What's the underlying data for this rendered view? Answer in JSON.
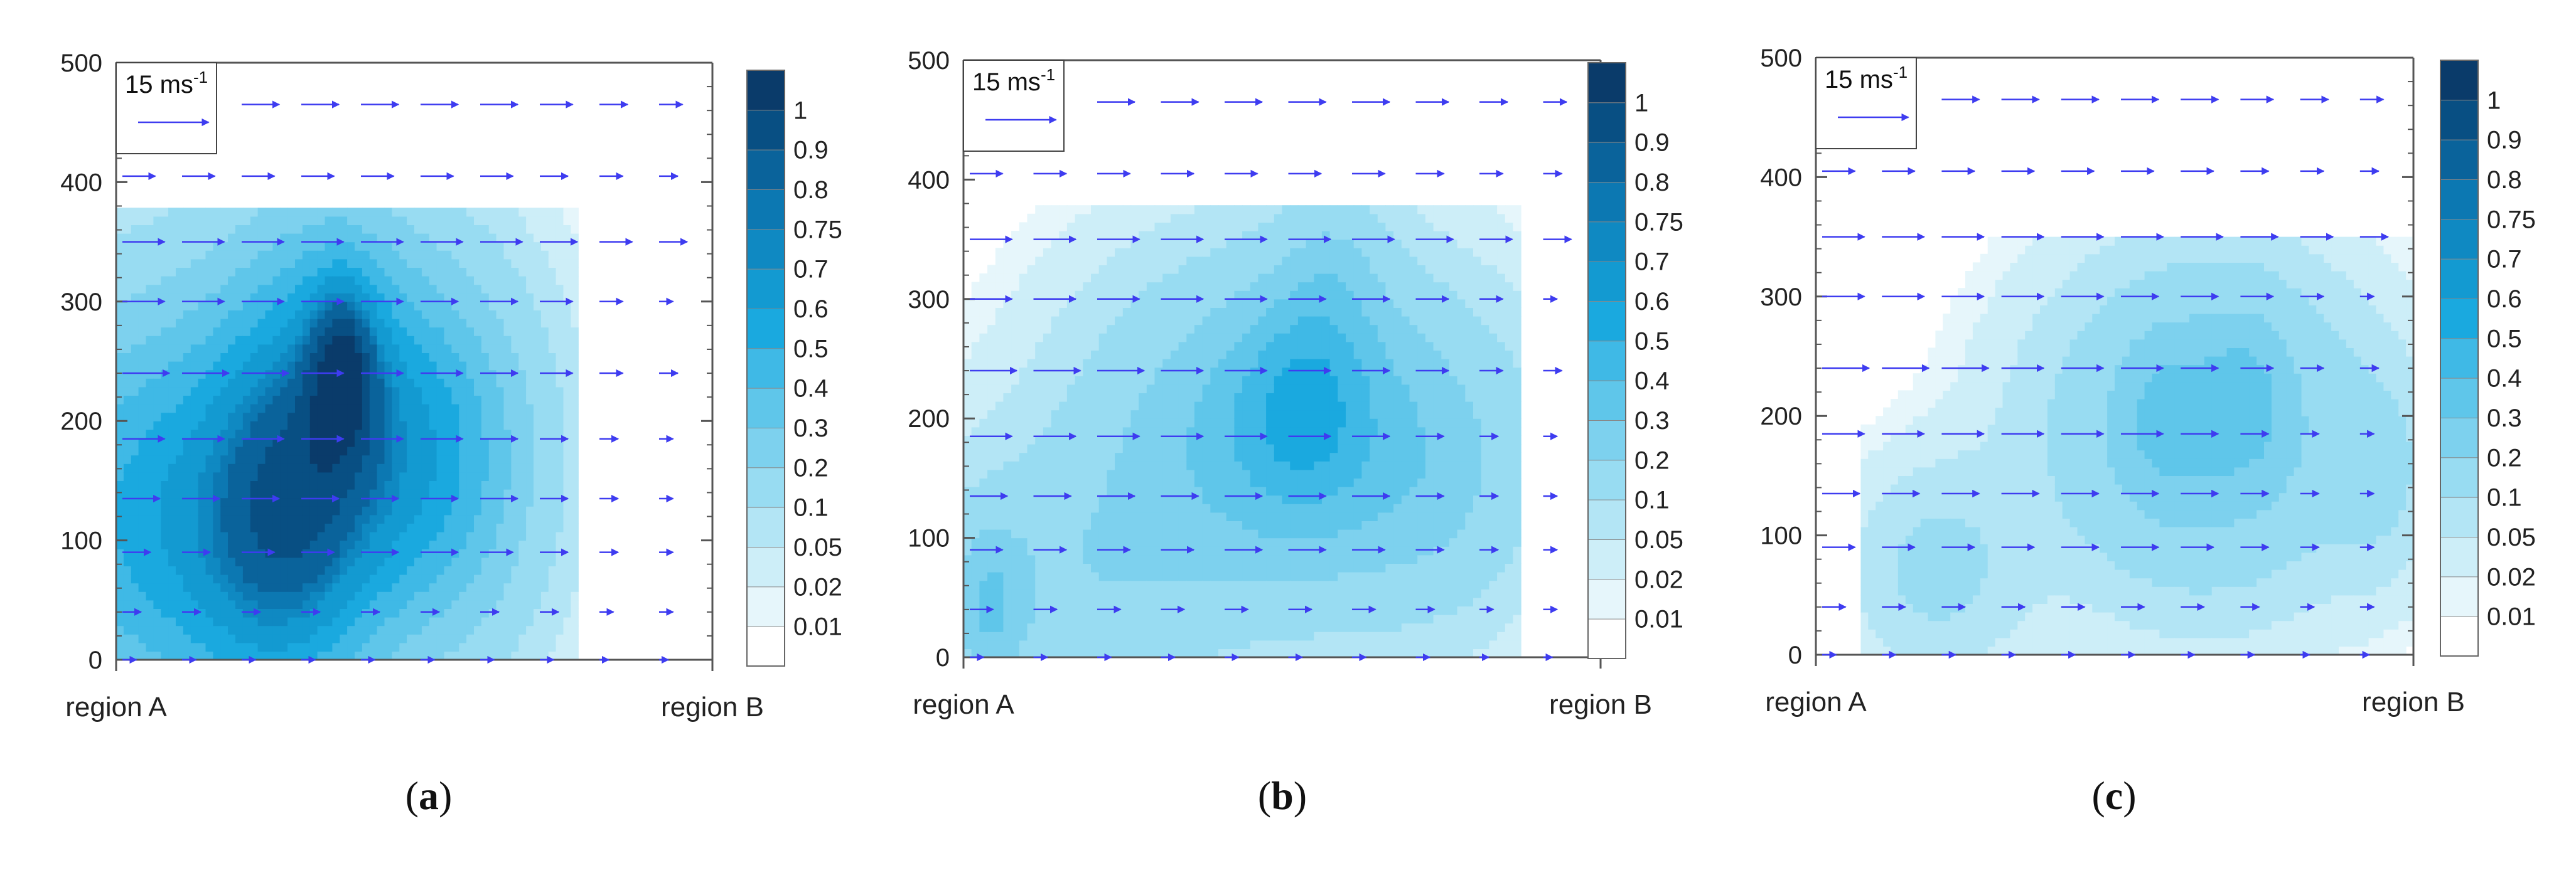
{
  "figure": {
    "panel_labels": [
      "a",
      "b",
      "c"
    ]
  },
  "palette": {
    "levels": [
      0.01,
      0.02,
      0.05,
      0.1,
      0.2,
      0.3,
      0.4,
      0.5,
      0.6,
      0.7,
      0.75,
      0.8,
      0.9,
      1
    ],
    "colors": [
      "#ffffff",
      "#e6f6fb",
      "#cdeef8",
      "#b3e5f5",
      "#98dcf2",
      "#7dd1ee",
      "#5fc6ea",
      "#3fb9e6",
      "#1aa9df",
      "#139ad1",
      "#0f89c2",
      "#0c78b2",
      "#0a639b",
      "#084f83",
      "#0a3b6a"
    ],
    "arrow_color": "#3e3cf0",
    "axis_color": "#555555"
  },
  "reference_vector": {
    "label": "15 ms",
    "superscript": "-1"
  },
  "chart_data": [
    {
      "type": "heatmap",
      "panel": "a",
      "xlabel": "",
      "ylabel": "",
      "x_start_label": "region A",
      "x_end_label": "region B",
      "x": [
        0,
        0.1,
        0.2,
        0.3,
        0.4,
        0.5,
        0.6,
        0.7,
        0.8,
        0.9,
        1
      ],
      "ylim": [
        0,
        500
      ],
      "yticks": [
        0,
        100,
        200,
        300,
        400,
        500
      ],
      "grid": false,
      "legend": "right colorbar",
      "blobs": [
        {
          "x": 0.1,
          "y": 120,
          "sx": 0.22,
          "sy": 130,
          "a": 0.55
        },
        {
          "x": 0.35,
          "y": 220,
          "sx": 0.12,
          "sy": 120,
          "a": 0.45
        },
        {
          "x": 0.38,
          "y": 250,
          "sx": 0.04,
          "sy": 50,
          "a": 0.4
        },
        {
          "x": 0.28,
          "y": 80,
          "sx": 0.1,
          "sy": 100,
          "a": 0.3
        },
        {
          "x": 0.55,
          "y": 170,
          "sx": 0.12,
          "sy": 110,
          "a": 0.4
        }
      ],
      "mask": {
        "x_max": 0.77,
        "y_max": 380
      },
      "wind_rows": [
        {
          "y": 0,
          "u": [
            3,
            3,
            3,
            3,
            3,
            3,
            3,
            3,
            2,
            2,
            2
          ]
        },
        {
          "y": 40,
          "u": [
            4,
            4,
            4,
            4,
            4,
            4,
            4,
            4,
            3,
            3,
            3
          ]
        },
        {
          "y": 90,
          "u": [
            6,
            6,
            7,
            7,
            8,
            8,
            7,
            6,
            4,
            3,
            2
          ]
        },
        {
          "y": 135,
          "u": [
            8,
            8,
            8,
            8,
            8,
            8,
            8,
            6,
            4,
            3,
            2
          ]
        },
        {
          "y": 185,
          "u": [
            9,
            9,
            9,
            9,
            9,
            9,
            8,
            6,
            4,
            3,
            2
          ]
        },
        {
          "y": 240,
          "u": [
            10,
            10,
            10,
            9,
            9,
            9,
            8,
            7,
            5,
            4,
            3
          ]
        },
        {
          "y": 300,
          "u": [
            9,
            9,
            9,
            9,
            9,
            8,
            8,
            7,
            5,
            3,
            3
          ]
        },
        {
          "y": 350,
          "u": [
            9,
            9,
            9,
            9,
            9,
            9,
            9,
            8,
            7,
            6,
            6
          ]
        },
        {
          "y": 405,
          "u": [
            7,
            7,
            7,
            7,
            7,
            7,
            7,
            6,
            5,
            4,
            4
          ]
        },
        {
          "y": 465,
          "u": [
            8,
            8,
            8,
            8,
            8,
            8,
            8,
            7,
            6,
            5,
            5
          ]
        }
      ]
    },
    {
      "type": "heatmap",
      "panel": "b",
      "xlabel": "",
      "ylabel": "",
      "x_start_label": "region A",
      "x_end_label": "region B",
      "x": [
        0,
        0.1,
        0.2,
        0.3,
        0.4,
        0.5,
        0.6,
        0.7,
        0.8,
        0.9,
        1
      ],
      "ylim": [
        0,
        500
      ],
      "yticks": [
        0,
        100,
        200,
        300,
        400,
        500
      ],
      "grid": false,
      "legend": "right colorbar",
      "blobs": [
        {
          "x": 0.5,
          "y": 190,
          "sx": 0.2,
          "sy": 100,
          "a": 0.35
        },
        {
          "x": 0.53,
          "y": 210,
          "sx": 0.07,
          "sy": 60,
          "a": 0.2
        },
        {
          "x": 0.15,
          "y": 60,
          "sx": 0.18,
          "sy": 80,
          "a": 0.15
        },
        {
          "x": 0.04,
          "y": 40,
          "sx": 0.04,
          "sy": 50,
          "a": 0.2
        },
        {
          "x": 0.58,
          "y": 320,
          "sx": 0.06,
          "sy": 60,
          "a": 0.12
        },
        {
          "x": 0.75,
          "y": 150,
          "sx": 0.12,
          "sy": 90,
          "a": 0.12
        }
      ],
      "mask": {
        "x_max": 0.88,
        "y_max": 380
      },
      "wind_rows": [
        {
          "y": 0,
          "u": [
            3,
            3,
            3,
            3,
            3,
            3,
            3,
            3,
            2,
            2,
            2
          ]
        },
        {
          "y": 40,
          "u": [
            5,
            5,
            5,
            5,
            5,
            5,
            5,
            4,
            3,
            3,
            3
          ]
        },
        {
          "y": 90,
          "u": [
            7,
            7,
            7,
            7,
            8,
            8,
            7,
            6,
            4,
            3,
            2
          ]
        },
        {
          "y": 135,
          "u": [
            8,
            8,
            8,
            8,
            8,
            8,
            8,
            6,
            4,
            3,
            2
          ]
        },
        {
          "y": 185,
          "u": [
            9,
            9,
            9,
            9,
            9,
            9,
            8,
            6,
            4,
            3,
            2
          ]
        },
        {
          "y": 240,
          "u": [
            10,
            10,
            10,
            9,
            9,
            9,
            8,
            7,
            5,
            4,
            3
          ]
        },
        {
          "y": 300,
          "u": [
            9,
            9,
            9,
            9,
            9,
            8,
            8,
            7,
            5,
            3,
            3
          ]
        },
        {
          "y": 350,
          "u": [
            9,
            9,
            9,
            9,
            9,
            9,
            9,
            8,
            7,
            6,
            6
          ]
        },
        {
          "y": 405,
          "u": [
            7,
            7,
            7,
            7,
            7,
            7,
            7,
            6,
            5,
            4,
            4
          ]
        },
        {
          "y": 465,
          "u": [
            8,
            8,
            8,
            8,
            8,
            8,
            8,
            7,
            6,
            5,
            5
          ]
        }
      ]
    },
    {
      "type": "heatmap",
      "panel": "c",
      "xlabel": "",
      "ylabel": "",
      "x_start_label": "region A",
      "x_end_label": "region B",
      "x": [
        0,
        0.1,
        0.2,
        0.3,
        0.4,
        0.5,
        0.6,
        0.7,
        0.8,
        0.9,
        1
      ],
      "ylim": [
        0,
        500
      ],
      "yticks": [
        0,
        100,
        200,
        300,
        400,
        500
      ],
      "grid": false,
      "legend": "right colorbar",
      "blobs": [
        {
          "x": 0.65,
          "y": 190,
          "sx": 0.18,
          "sy": 95,
          "a": 0.28
        },
        {
          "x": 0.72,
          "y": 220,
          "sx": 0.05,
          "sy": 50,
          "a": 0.12
        },
        {
          "x": 0.58,
          "y": 200,
          "sx": 0.05,
          "sy": 50,
          "a": 0.1
        },
        {
          "x": 0.2,
          "y": 70,
          "sx": 0.1,
          "sy": 60,
          "a": 0.12
        },
        {
          "x": 0.95,
          "y": 150,
          "sx": 0.06,
          "sy": 60,
          "a": 0.08
        }
      ],
      "mask": {
        "x_min": 0.07,
        "y_max": 350
      },
      "wind_rows": [
        {
          "y": 0,
          "u": [
            3,
            3,
            3,
            3,
            3,
            3,
            3,
            3,
            2,
            2,
            2
          ]
        },
        {
          "y": 40,
          "u": [
            5,
            5,
            5,
            5,
            5,
            5,
            5,
            4,
            3,
            3,
            3
          ]
        },
        {
          "y": 90,
          "u": [
            7,
            7,
            7,
            7,
            8,
            8,
            7,
            6,
            4,
            3,
            2
          ]
        },
        {
          "y": 135,
          "u": [
            8,
            8,
            8,
            8,
            8,
            8,
            8,
            6,
            4,
            3,
            2
          ]
        },
        {
          "y": 185,
          "u": [
            9,
            9,
            9,
            9,
            9,
            9,
            8,
            6,
            4,
            3,
            2
          ]
        },
        {
          "y": 240,
          "u": [
            10,
            10,
            10,
            9,
            9,
            9,
            8,
            7,
            5,
            4,
            3
          ]
        },
        {
          "y": 300,
          "u": [
            9,
            9,
            9,
            9,
            9,
            8,
            8,
            7,
            5,
            3,
            3
          ]
        },
        {
          "y": 350,
          "u": [
            9,
            9,
            9,
            9,
            9,
            9,
            9,
            8,
            7,
            6,
            6
          ]
        },
        {
          "y": 405,
          "u": [
            7,
            7,
            7,
            7,
            7,
            7,
            7,
            6,
            5,
            4,
            4
          ]
        },
        {
          "y": 465,
          "u": [
            8,
            8,
            8,
            8,
            8,
            8,
            8,
            7,
            6,
            5,
            5
          ]
        }
      ]
    }
  ]
}
